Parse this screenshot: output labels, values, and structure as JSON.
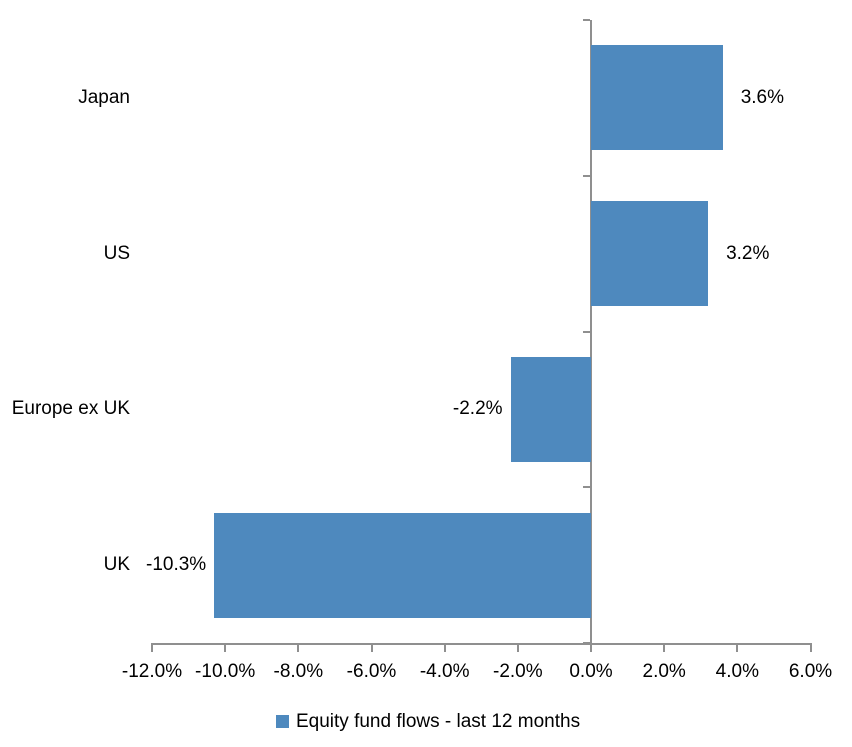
{
  "chart_data": {
    "type": "bar",
    "orientation": "horizontal",
    "categories": [
      "Japan",
      "US",
      "Europe ex UK",
      "UK"
    ],
    "values": [
      3.6,
      3.2,
      -2.2,
      -10.3
    ],
    "value_labels": [
      "3.6%",
      "3.2%",
      "-2.2%",
      "-10.3%"
    ],
    "series_name": "Equity fund flows - last 12 months",
    "xlim": [
      -12,
      6
    ],
    "x_tick_step": 2,
    "x_tick_labels": [
      "-12.0%",
      "-10.0%",
      "-8.0%",
      "-6.0%",
      "-4.0%",
      "-2.0%",
      "0.0%",
      "2.0%",
      "4.0%",
      "6.0%"
    ],
    "title": "",
    "xlabel": "",
    "ylabel": "",
    "grid": false,
    "legend_position": "bottom",
    "bar_color": "#4e89be",
    "axis_color": "#8f8f8f",
    "text_color": "#000000",
    "background_color": "#ffffff"
  }
}
